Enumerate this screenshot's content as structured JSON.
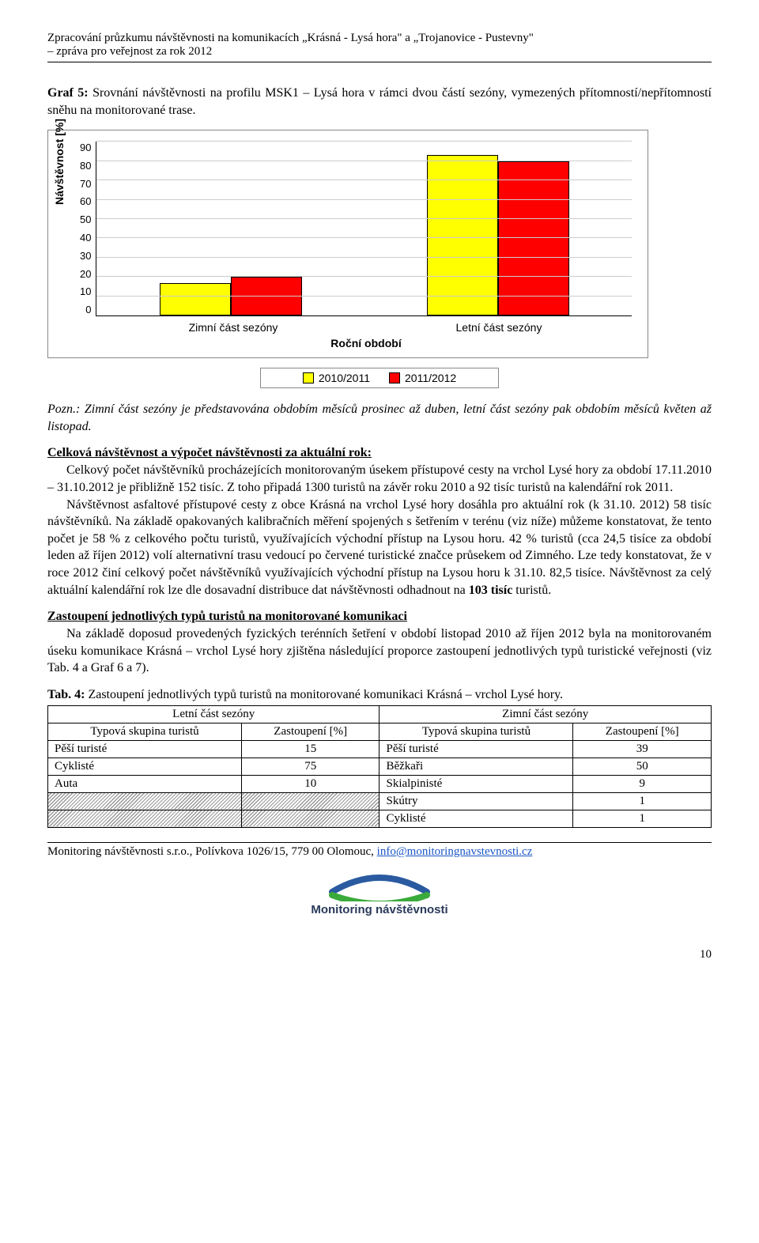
{
  "header": {
    "line1": "Zpracování průzkumu návštěvnosti na komunikacích „Krásná - Lysá hora\" a „Trojanovice - Pustevny\"",
    "line2": "– zpráva pro veřejnost za rok 2012"
  },
  "graf": {
    "title_prefix": "Graf 5:",
    "title_rest": " Srovnání návštěvnosti na profilu MSK1 – Lysá hora v rámci dvou částí sezóny, vymezených přítomností/nepřítomností sněhu na monitorované trase."
  },
  "chart": {
    "type": "bar",
    "y_label": "Návštěvnost [%]",
    "x_label": "Roční období",
    "y_ticks": [
      "90",
      "80",
      "70",
      "60",
      "50",
      "40",
      "30",
      "20",
      "10",
      "0"
    ],
    "y_max": 90,
    "grid_color": "#cccccc",
    "categories": [
      "Zimní část sezóny",
      "Letní část sezóny"
    ],
    "series": [
      {
        "label": "2010/2011",
        "color": "#ffff00"
      },
      {
        "label": "2011/2012",
        "color": "#ff0000"
      }
    ],
    "values": [
      [
        17,
        20
      ],
      [
        83,
        80
      ]
    ],
    "bar_border": "#000000",
    "background_color": "#ffffff"
  },
  "note": {
    "prefix": "Pozn.:",
    "text": " Zimní část sezóny je představována obdobím měsíců prosinec až duben, letní část sezóny pak obdobím měsíců květen až listopad."
  },
  "section1": {
    "head": "Celková návštěvnost a výpočet návštěvnosti za aktuální rok:",
    "para1a": "Celkový počet návštěvníků procházejících monitorovaným úsekem přístupové cesty na vrchol Lysé hory za období 17.11.2010 – 31.10.2012 je přibližně 152 tisíc. Z toho připadá 1300 turistů na závěr roku 2010 a 92 tisíc turistů na kalendářní rok 2011.",
    "para1b_1": "Návštěvnost asfaltové přístupové cesty z obce Krásná na vrchol Lysé hory dosáhla pro aktuální rok (k 31.10. 2012) 58 tisíc návštěvníků. Na základě opakovaných kalibračních měření spojených s šetřením v terénu (viz níže) můžeme konstatovat, že tento počet je 58 % z celkového počtu turistů, využívajících východní přístup na Lysou horu. 42 % turistů (cca 24,5 tisíce za období leden až říjen 2012) volí alternativní trasu vedoucí po červené turistické značce průsekem od Zimného. Lze tedy konstatovat, že v roce 2012 činí celkový počet návštěvníků využívajících východní přístup na Lysou horu k 31.10. 82,5 tisíce. Návštěvnost za celý aktuální kalendářní rok lze dle dosavadní distribuce dat návštěvnosti odhadnout na ",
    "para1b_bold": "103 tisíc",
    "para1b_2": " turistů."
  },
  "section2": {
    "head": "Zastoupení jednotlivých typů turistů na monitorované komunikaci",
    "para": "Na základě doposud provedených fyzických terénních šetření v období listopad 2010 až říjen 2012 byla na monitorovaném úseku komunikace Krásná – vrchol Lysé hory zjištěna následující proporce zastoupení jednotlivých typů turistické veřejnosti (viz Tab. 4 a Graf 6 a 7)."
  },
  "table": {
    "title_prefix": "Tab. 4:",
    "title_rest": " Zastoupení jednotlivých typů turistů na monitorované komunikaci Krásná – vrchol Lysé hory.",
    "header_left": "Letní část sezóny",
    "header_right": "Zimní část sezóny",
    "colA": "Typová skupina turistů",
    "colB": "Zastoupení [%]",
    "rows_left": [
      {
        "label": "Pěší turisté",
        "val": "15"
      },
      {
        "label": "Cyklisté",
        "val": "75"
      },
      {
        "label": "Auta",
        "val": "10"
      }
    ],
    "rows_right": [
      {
        "label": "Pěší turisté",
        "val": "39"
      },
      {
        "label": "Běžkaři",
        "val": "50"
      },
      {
        "label": "Skialpinisté",
        "val": "9"
      },
      {
        "label": "Skútry",
        "val": "1"
      },
      {
        "label": "Cyklisté",
        "val": "1"
      }
    ]
  },
  "footer": {
    "text": "Monitoring návštěvnosti s.r.o., Polívkova 1026/15, 779 00 Olomouc, ",
    "link": "info@monitoringnavstevnosti.cz",
    "logo_text": "Monitoring návštěvnosti"
  },
  "page_number": "10"
}
